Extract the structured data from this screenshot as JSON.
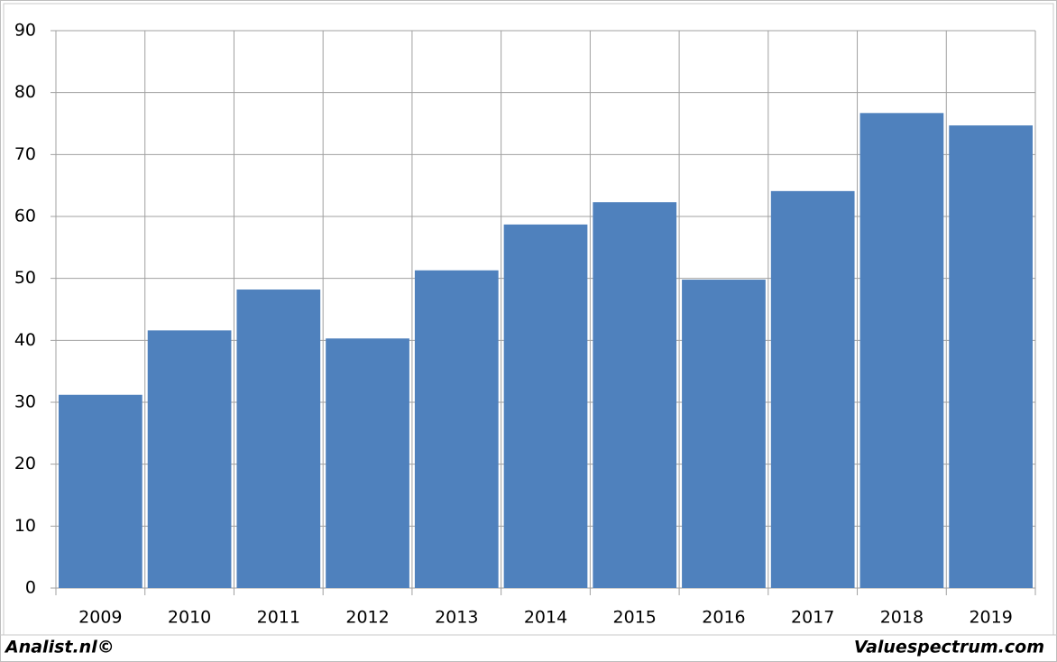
{
  "chart_data": {
    "type": "bar",
    "categories": [
      "2009",
      "2010",
      "2011",
      "2012",
      "2013",
      "2014",
      "2015",
      "2016",
      "2017",
      "2018",
      "2019"
    ],
    "values": [
      31.2,
      41.6,
      48.2,
      40.3,
      51.3,
      58.7,
      62.3,
      49.8,
      64.1,
      76.7,
      74.7
    ],
    "color": "#4f81bd",
    "ylim": [
      0,
      90
    ],
    "yticks": [
      0,
      10,
      20,
      30,
      40,
      50,
      60,
      70,
      80,
      90
    ],
    "grid": true
  },
  "footer": {
    "left": "Analist.nl©",
    "right": "Valuespectrum.com"
  }
}
